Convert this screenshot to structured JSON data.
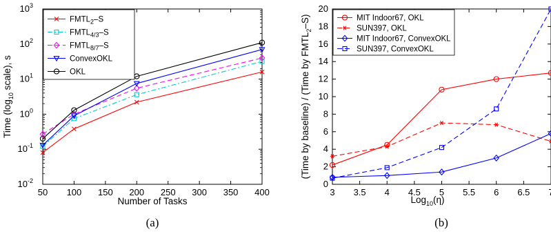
{
  "chart_data": [
    {
      "type": "line",
      "caption": "(a)",
      "xlabel": "Number of Tasks",
      "ylabel": "Time (log10 scale), s",
      "yscale": "log",
      "xlim": [
        50,
        400
      ],
      "ylim": [
        0.01,
        1000
      ],
      "xticks": [
        "50",
        "100",
        "150",
        "200",
        "250",
        "300",
        "350",
        "400"
      ],
      "yticks": [
        {
          "base": "10",
          "exp": "3"
        },
        {
          "base": "10",
          "exp": "2"
        },
        {
          "base": "10",
          "exp": "1"
        },
        {
          "base": "10",
          "exp": "0"
        },
        {
          "base": "10",
          "exp": "-1"
        },
        {
          "base": "10",
          "exp": "-2"
        }
      ],
      "legend_position": "top-left",
      "grid": false,
      "x": [
        50,
        100,
        200,
        400
      ],
      "series": [
        {
          "name": "FMTL2-S",
          "name_main": "FMTL",
          "name_sub": "2",
          "name_tail": "–S",
          "color": "#ff0000",
          "marker": "x",
          "dash": "solid",
          "values": [
            0.08,
            0.38,
            2.2,
            16
          ]
        },
        {
          "name": "FMTL4/3-S",
          "name_main": "FMTL",
          "name_sub": "4/3",
          "name_tail": "–S",
          "color": "#00cccc",
          "marker": "square",
          "dash": "dashdot",
          "values": [
            0.12,
            0.75,
            3.6,
            32
          ]
        },
        {
          "name": "FMTL8/7-S",
          "name_main": "FMTL",
          "name_sub": "8/7",
          "name_tail": "–S",
          "color": "#ff00ff",
          "marker": "diamond",
          "dash": "dashed",
          "values": [
            0.27,
            1.0,
            5.5,
            40
          ]
        },
        {
          "name": "ConvexOKL",
          "name_main": "ConvexOKL",
          "name_sub": "",
          "name_tail": "",
          "color": "#0000ff",
          "marker": "triangle-down",
          "dash": "solid",
          "values": [
            0.13,
            0.9,
            7.5,
            70
          ]
        },
        {
          "name": "OKL",
          "name_main": "OKL",
          "name_sub": "",
          "name_tail": "",
          "color": "#000000",
          "marker": "circle",
          "dash": "solid",
          "values": [
            0.2,
            1.3,
            12,
            110
          ]
        }
      ]
    },
    {
      "type": "line",
      "caption": "(b)",
      "xlabel": "Log10(η)",
      "ylabel": "(Time by baseline) / (Time by FMTL2–S)",
      "xlim": [
        3,
        7
      ],
      "ylim": [
        0,
        20
      ],
      "xticks": [
        "3",
        "3.5",
        "4",
        "4.5",
        "5",
        "5.5",
        "6",
        "6.5",
        "7"
      ],
      "yticks": [
        "0",
        "2",
        "4",
        "6",
        "8",
        "10",
        "12",
        "14",
        "16",
        "18",
        "20"
      ],
      "legend_position": "top-left",
      "grid": false,
      "x": [
        3,
        4,
        5,
        6,
        7
      ],
      "series": [
        {
          "name": "MIT Indoor67, OKL",
          "color": "#ff0000",
          "marker": "circle",
          "dash": "solid",
          "values": [
            2.2,
            4.5,
            10.8,
            12.0,
            12.7
          ]
        },
        {
          "name": "SUN397, OKL",
          "color": "#ff0000",
          "marker": "asterisk",
          "dash": "dashed",
          "values": [
            3.2,
            4.3,
            7.0,
            6.8,
            4.9
          ]
        },
        {
          "name": "MIT Indoor67, ConvexOKL",
          "color": "#0000ff",
          "marker": "diamond",
          "dash": "solid",
          "values": [
            0.8,
            1.0,
            1.4,
            3.0,
            5.8
          ]
        },
        {
          "name": "SUN397, ConvexOKL",
          "color": "#0000ff",
          "marker": "square",
          "dash": "dashed",
          "values": [
            0.7,
            1.9,
            4.2,
            8.6,
            20.0
          ]
        }
      ]
    }
  ]
}
